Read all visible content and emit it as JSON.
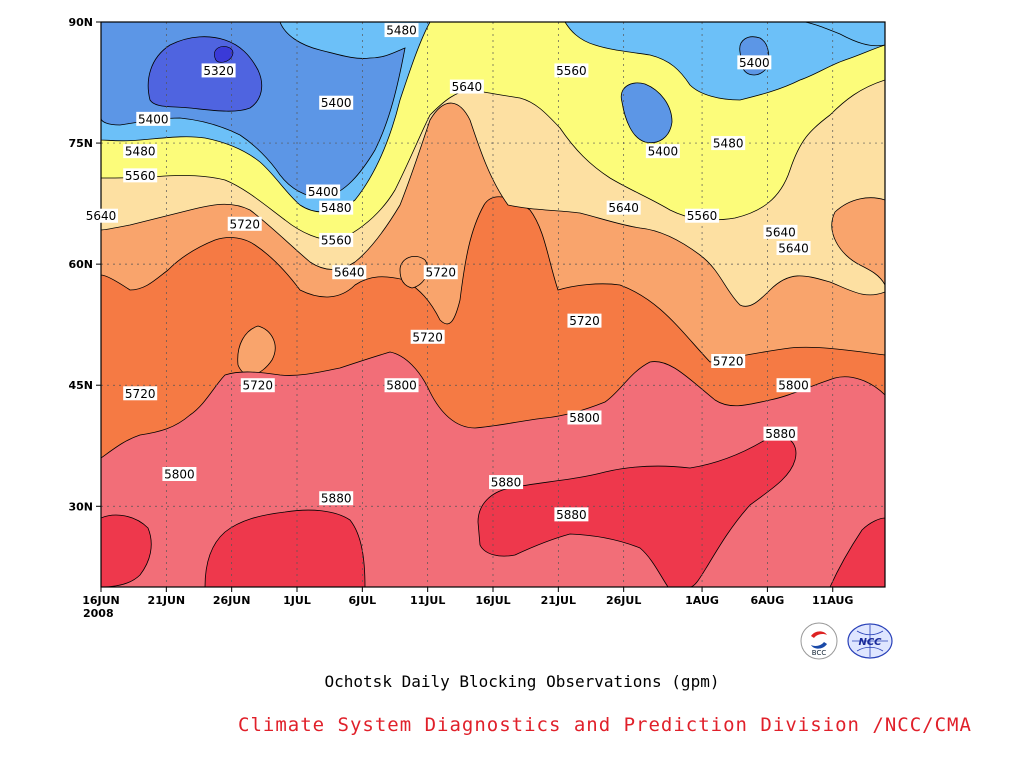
{
  "chart_data": {
    "type": "heatmap",
    "title": "Ochotsk Daily Blocking Observations (gpm)",
    "xlabel": "",
    "ylabel": "",
    "x_ticks": [
      "16JUN\n2008",
      "21JUN",
      "26JUN",
      "1JUL",
      "6JUL",
      "11JUL",
      "16JUL",
      "21JUL",
      "26JUL",
      "1AUG",
      "6AUG",
      "11AUG"
    ],
    "x_range": [
      "2008-06-16",
      "2008-08-15"
    ],
    "y_ticks": [
      "30N",
      "45N",
      "60N",
      "75N",
      "90N"
    ],
    "ylim": [
      20,
      90
    ],
    "grid": true,
    "contour_interval": 80,
    "contour_levels": [
      5320,
      5400,
      5480,
      5560,
      5640,
      5720,
      5800,
      5880
    ],
    "contour_labels": [
      {
        "text": "5320",
        "date": "2008-06-25",
        "lat": 84
      },
      {
        "text": "5400",
        "date": "2008-06-20",
        "lat": 78
      },
      {
        "text": "5400",
        "date": "2008-07-04",
        "lat": 80
      },
      {
        "text": "5400",
        "date": "2008-07-03",
        "lat": 69
      },
      {
        "text": "5400",
        "date": "2008-07-29",
        "lat": 74
      },
      {
        "text": "5400",
        "date": "2008-08-05",
        "lat": 85
      },
      {
        "text": "5480",
        "date": "2008-07-09",
        "lat": 89
      },
      {
        "text": "5480",
        "date": "2008-06-19",
        "lat": 74
      },
      {
        "text": "5480",
        "date": "2008-07-04",
        "lat": 67
      },
      {
        "text": "5480",
        "date": "2008-08-03",
        "lat": 75
      },
      {
        "text": "5560",
        "date": "2008-06-19",
        "lat": 71
      },
      {
        "text": "5560",
        "date": "2008-07-04",
        "lat": 63
      },
      {
        "text": "5560",
        "date": "2008-07-22",
        "lat": 84
      },
      {
        "text": "5560",
        "date": "2008-08-01",
        "lat": 66
      },
      {
        "text": "5640",
        "date": "2008-07-14",
        "lat": 82
      },
      {
        "text": "5640",
        "date": "2008-06-16",
        "lat": 66
      },
      {
        "text": "5640",
        "date": "2008-07-05",
        "lat": 59
      },
      {
        "text": "5640",
        "date": "2008-07-26",
        "lat": 67
      },
      {
        "text": "5640",
        "date": "2008-08-07",
        "lat": 64
      },
      {
        "text": "5640",
        "date": "2008-08-08",
        "lat": 62
      },
      {
        "text": "5720",
        "date": "2008-06-27",
        "lat": 65
      },
      {
        "text": "5720",
        "date": "2008-07-12",
        "lat": 59
      },
      {
        "text": "5720",
        "date": "2008-07-11",
        "lat": 51
      },
      {
        "text": "5720",
        "date": "2008-07-23",
        "lat": 53
      },
      {
        "text": "5720",
        "date": "2008-08-03",
        "lat": 48
      },
      {
        "text": "5720",
        "date": "2008-06-19",
        "lat": 44
      },
      {
        "text": "5720",
        "date": "2008-06-28",
        "lat": 45
      },
      {
        "text": "5800",
        "date": "2008-07-09",
        "lat": 45
      },
      {
        "text": "5800",
        "date": "2008-07-23",
        "lat": 41
      },
      {
        "text": "5800",
        "date": "2008-06-22",
        "lat": 34
      },
      {
        "text": "5800",
        "date": "2008-08-08",
        "lat": 45
      },
      {
        "text": "5880",
        "date": "2008-07-04",
        "lat": 31
      },
      {
        "text": "5880",
        "date": "2008-07-17",
        "lat": 33
      },
      {
        "text": "5880",
        "date": "2008-07-22",
        "lat": 29
      },
      {
        "text": "5880",
        "date": "2008-08-07",
        "lat": 39
      }
    ],
    "level_colors": {
      "lt5320": "#3a3ad8",
      "5320-5400": "#5060e0",
      "5400-5480": "#5c96e6",
      "5480-5560": "#6cc0f8",
      "5560-5640": "#fcfc7a",
      "5640-5720": "#fde0a2",
      "5720-5800": "#f9a46c",
      "5800-5880": "#f57a44",
      "5880-5960": "#f26e78",
      "gt5960": "#ee384c"
    }
  },
  "footer": {
    "credit": "Climate System Diagnostics and Prediction Division /NCC/CMA",
    "credit_color": "#e0202a",
    "logos": [
      {
        "icon": "bcc-logo",
        "text": "BCC"
      },
      {
        "icon": "ncc-logo",
        "text": "NCC"
      }
    ]
  }
}
